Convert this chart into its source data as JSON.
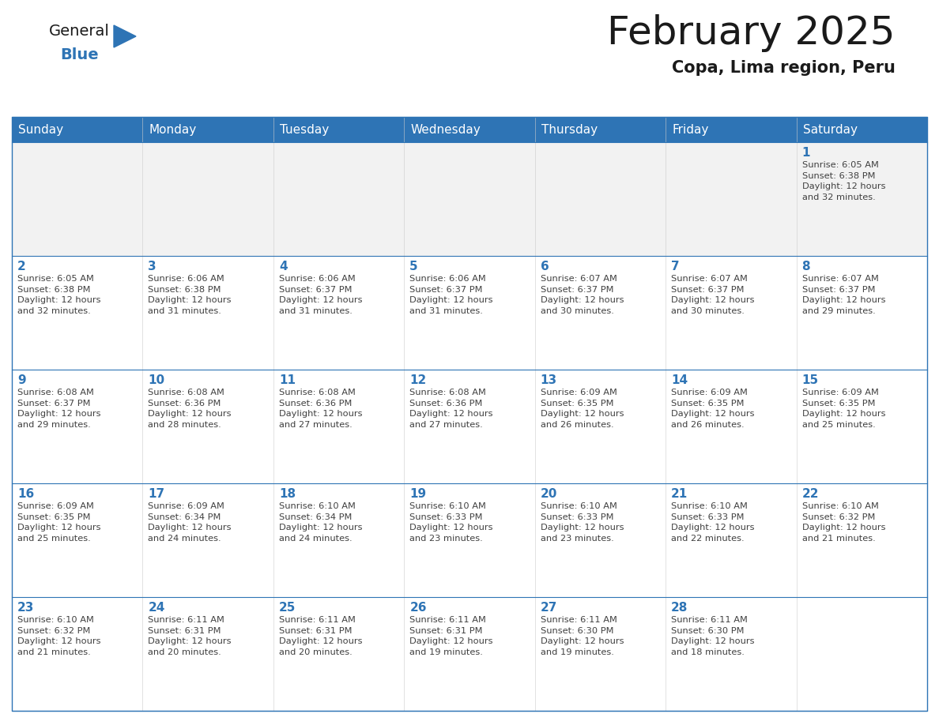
{
  "title": "February 2025",
  "subtitle": "Copa, Lima region, Peru",
  "header_color": "#2E74B5",
  "header_text_color": "#FFFFFF",
  "cell_bg_color": "#FFFFFF",
  "cell_alt_bg_color": "#F2F2F2",
  "cell_border_color": "#2E74B5",
  "day_number_color": "#2E74B5",
  "cell_text_color": "#404040",
  "background_color": "#FFFFFF",
  "days_of_week": [
    "Sunday",
    "Monday",
    "Tuesday",
    "Wednesday",
    "Thursday",
    "Friday",
    "Saturday"
  ],
  "weeks": [
    [
      {
        "day": null,
        "info": null
      },
      {
        "day": null,
        "info": null
      },
      {
        "day": null,
        "info": null
      },
      {
        "day": null,
        "info": null
      },
      {
        "day": null,
        "info": null
      },
      {
        "day": null,
        "info": null
      },
      {
        "day": 1,
        "info": "Sunrise: 6:05 AM\nSunset: 6:38 PM\nDaylight: 12 hours\nand 32 minutes."
      }
    ],
    [
      {
        "day": 2,
        "info": "Sunrise: 6:05 AM\nSunset: 6:38 PM\nDaylight: 12 hours\nand 32 minutes."
      },
      {
        "day": 3,
        "info": "Sunrise: 6:06 AM\nSunset: 6:38 PM\nDaylight: 12 hours\nand 31 minutes."
      },
      {
        "day": 4,
        "info": "Sunrise: 6:06 AM\nSunset: 6:37 PM\nDaylight: 12 hours\nand 31 minutes."
      },
      {
        "day": 5,
        "info": "Sunrise: 6:06 AM\nSunset: 6:37 PM\nDaylight: 12 hours\nand 31 minutes."
      },
      {
        "day": 6,
        "info": "Sunrise: 6:07 AM\nSunset: 6:37 PM\nDaylight: 12 hours\nand 30 minutes."
      },
      {
        "day": 7,
        "info": "Sunrise: 6:07 AM\nSunset: 6:37 PM\nDaylight: 12 hours\nand 30 minutes."
      },
      {
        "day": 8,
        "info": "Sunrise: 6:07 AM\nSunset: 6:37 PM\nDaylight: 12 hours\nand 29 minutes."
      }
    ],
    [
      {
        "day": 9,
        "info": "Sunrise: 6:08 AM\nSunset: 6:37 PM\nDaylight: 12 hours\nand 29 minutes."
      },
      {
        "day": 10,
        "info": "Sunrise: 6:08 AM\nSunset: 6:36 PM\nDaylight: 12 hours\nand 28 minutes."
      },
      {
        "day": 11,
        "info": "Sunrise: 6:08 AM\nSunset: 6:36 PM\nDaylight: 12 hours\nand 27 minutes."
      },
      {
        "day": 12,
        "info": "Sunrise: 6:08 AM\nSunset: 6:36 PM\nDaylight: 12 hours\nand 27 minutes."
      },
      {
        "day": 13,
        "info": "Sunrise: 6:09 AM\nSunset: 6:35 PM\nDaylight: 12 hours\nand 26 minutes."
      },
      {
        "day": 14,
        "info": "Sunrise: 6:09 AM\nSunset: 6:35 PM\nDaylight: 12 hours\nand 26 minutes."
      },
      {
        "day": 15,
        "info": "Sunrise: 6:09 AM\nSunset: 6:35 PM\nDaylight: 12 hours\nand 25 minutes."
      }
    ],
    [
      {
        "day": 16,
        "info": "Sunrise: 6:09 AM\nSunset: 6:35 PM\nDaylight: 12 hours\nand 25 minutes."
      },
      {
        "day": 17,
        "info": "Sunrise: 6:09 AM\nSunset: 6:34 PM\nDaylight: 12 hours\nand 24 minutes."
      },
      {
        "day": 18,
        "info": "Sunrise: 6:10 AM\nSunset: 6:34 PM\nDaylight: 12 hours\nand 24 minutes."
      },
      {
        "day": 19,
        "info": "Sunrise: 6:10 AM\nSunset: 6:33 PM\nDaylight: 12 hours\nand 23 minutes."
      },
      {
        "day": 20,
        "info": "Sunrise: 6:10 AM\nSunset: 6:33 PM\nDaylight: 12 hours\nand 23 minutes."
      },
      {
        "day": 21,
        "info": "Sunrise: 6:10 AM\nSunset: 6:33 PM\nDaylight: 12 hours\nand 22 minutes."
      },
      {
        "day": 22,
        "info": "Sunrise: 6:10 AM\nSunset: 6:32 PM\nDaylight: 12 hours\nand 21 minutes."
      }
    ],
    [
      {
        "day": 23,
        "info": "Sunrise: 6:10 AM\nSunset: 6:32 PM\nDaylight: 12 hours\nand 21 minutes."
      },
      {
        "day": 24,
        "info": "Sunrise: 6:11 AM\nSunset: 6:31 PM\nDaylight: 12 hours\nand 20 minutes."
      },
      {
        "day": 25,
        "info": "Sunrise: 6:11 AM\nSunset: 6:31 PM\nDaylight: 12 hours\nand 20 minutes."
      },
      {
        "day": 26,
        "info": "Sunrise: 6:11 AM\nSunset: 6:31 PM\nDaylight: 12 hours\nand 19 minutes."
      },
      {
        "day": 27,
        "info": "Sunrise: 6:11 AM\nSunset: 6:30 PM\nDaylight: 12 hours\nand 19 minutes."
      },
      {
        "day": 28,
        "info": "Sunrise: 6:11 AM\nSunset: 6:30 PM\nDaylight: 12 hours\nand 18 minutes."
      },
      {
        "day": null,
        "info": null
      }
    ]
  ],
  "logo_triangle_color": "#2E74B5",
  "title_fontsize": 36,
  "subtitle_fontsize": 15,
  "header_fontsize": 11,
  "day_number_fontsize": 11,
  "cell_text_fontsize": 8.2
}
